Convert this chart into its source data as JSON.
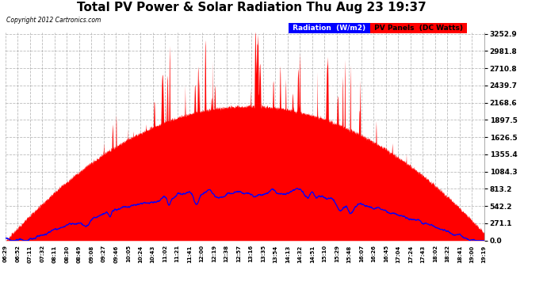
{
  "title": "Total PV Power & Solar Radiation Thu Aug 23 19:37",
  "copyright": "Copyright 2012 Cartronics.com",
  "y_max": 3252.9,
  "y_ticks": [
    0.0,
    271.1,
    542.2,
    813.2,
    1084.3,
    1355.4,
    1626.5,
    1897.5,
    2168.6,
    2439.7,
    2710.8,
    2981.8,
    3252.9
  ],
  "bg_color": "#ffffff",
  "plot_bg_color": "#ffffff",
  "grid_color": "#aaaaaa",
  "fill_color": "#ff0000",
  "line_color": "#0000ff",
  "legend_radiation_bg": "#0000ff",
  "legend_pv_bg": "#ff0000",
  "x_labels": [
    "06:29",
    "06:52",
    "07:11",
    "07:32",
    "08:11",
    "08:30",
    "08:49",
    "09:08",
    "09:27",
    "09:46",
    "10:05",
    "10:24",
    "10:43",
    "11:02",
    "11:21",
    "11:41",
    "12:00",
    "12:19",
    "12:38",
    "12:57",
    "13:16",
    "13:35",
    "13:54",
    "14:13",
    "14:32",
    "14:51",
    "15:10",
    "15:29",
    "15:48",
    "16:07",
    "16:26",
    "16:45",
    "17:04",
    "17:24",
    "17:43",
    "18:02",
    "18:22",
    "18:41",
    "19:00",
    "19:19"
  ],
  "radiation_scale": 813.2,
  "pv_envelope_scale": 3252.9
}
